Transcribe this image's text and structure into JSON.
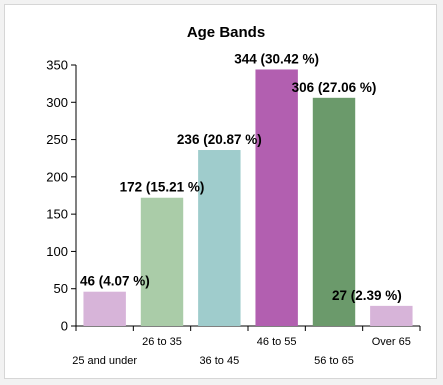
{
  "chart_data": {
    "type": "bar",
    "title": "Age Bands",
    "xlabel": "",
    "ylabel": "",
    "ylim": [
      0,
      350
    ],
    "yticks": [
      0,
      50,
      100,
      150,
      200,
      250,
      300,
      350
    ],
    "grid": false,
    "legend": "none",
    "categories": [
      "25 and under",
      "26 to 35",
      "36 to 45",
      "46 to 55",
      "56 to 65",
      "Over 65"
    ],
    "values": [
      46,
      172,
      236,
      344,
      306,
      27
    ],
    "data_labels": [
      "46 (4.07 %)",
      "172 (15.21 %)",
      "236 (20.87 %)",
      "344 (30.42 %)",
      "306 (27.06 %)",
      "27 (2.39 %)"
    ],
    "colors": [
      "#d7b4d9",
      "#aacca8",
      "#9fcccc",
      "#b25fb0",
      "#6b9a6b",
      "#d7b4d9"
    ]
  }
}
